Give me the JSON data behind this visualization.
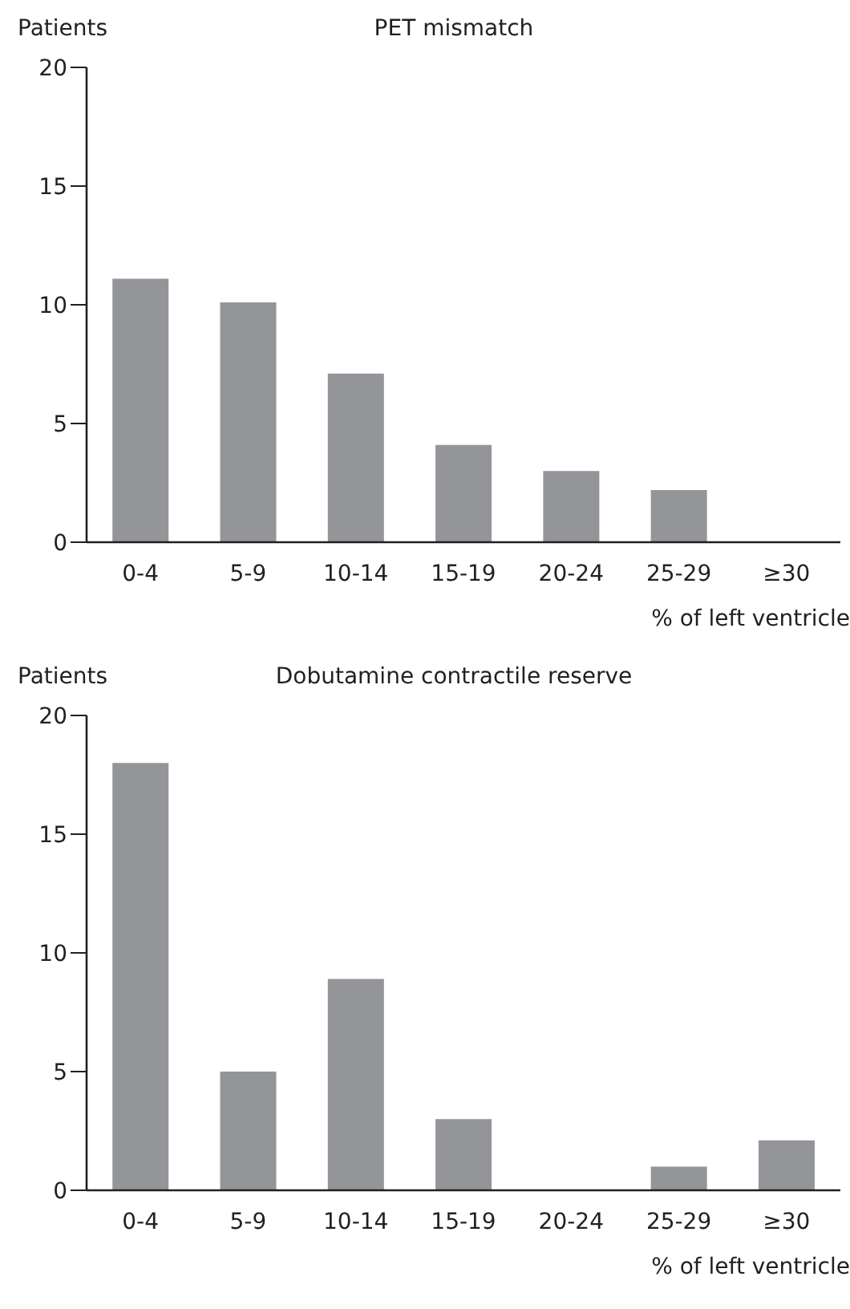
{
  "chart_data": [
    {
      "type": "bar",
      "title": "PET mismatch",
      "ylabel": "Patients",
      "xlabel": "% of left ventricle",
      "categories": [
        "0-4",
        "5-9",
        "10-14",
        "15-19",
        "20-24",
        "25-29",
        "≥30"
      ],
      "values": [
        11.1,
        10.1,
        7.1,
        4.1,
        3,
        2.2,
        0
      ],
      "color": "#939598",
      "ylim": [
        0,
        20
      ],
      "yticks": [
        0,
        5,
        10,
        15,
        20
      ],
      "grid": false,
      "legend": false
    },
    {
      "type": "bar",
      "title": "Dobutamine contractile reserve",
      "ylabel": "Patients",
      "xlabel": "% of left ventricle",
      "categories": [
        "0-4",
        "5-9",
        "10-14",
        "15-19",
        "20-24",
        "25-29",
        "≥30"
      ],
      "values": [
        18,
        5,
        8.9,
        3,
        0,
        1,
        2.1
      ],
      "color": "#939598",
      "ylim": [
        0,
        20
      ],
      "yticks": [
        0,
        5,
        10,
        15,
        20
      ],
      "grid": false,
      "legend": false
    }
  ]
}
